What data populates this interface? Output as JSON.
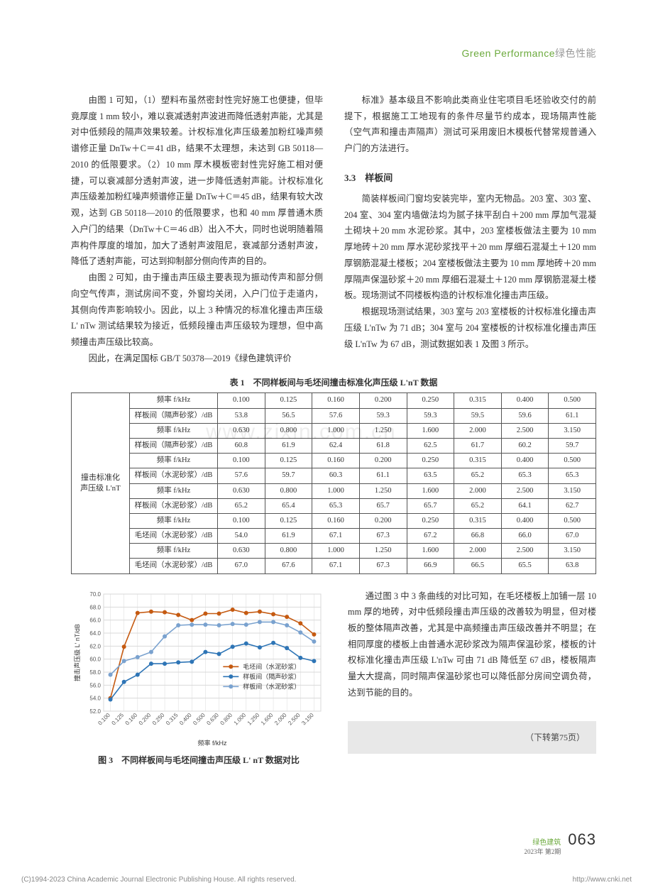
{
  "header": {
    "en": "Green Performance",
    "cn": "绿色性能"
  },
  "left_col": {
    "p1": "由图 1 可知，（1）塑料布虽然密封性完好施工也便捷，但毕竟厚度 1 mm 较小，难以衰减透射声波进而降低透射声能，尤其是对中低频段的隔声效果较差。计权标准化声压级差加粉红噪声频谱修正量 DnTw＋C＝41 dB，结果不太理想，未达到 GB 50118—2010 的低限要求。（2）10 mm 厚木模板密封性完好施工相对便捷，可以衰减部分透射声波，进一步降低透射声能。计权标准化声压级差加粉红噪声频谱修正量 DnTw＋C＝45 dB，结果有较大改观，达到 GB 50118—2010 的低限要求，也和 40 mm 厚普通木质入户门的结果（DnTw＋C＝46 dB）出入不大，同时也说明随着隔声构件厚度的增加，加大了透射声波阻尼，衰减部分透射声波，降低了透射声能，可达到抑制部分侧向传声的目的。",
    "p2": "由图 2 可知，由于撞击声压级主要表现为振动传声和部分侧向空气传声，测试房间不变，外窗均关闭，入户门位于走道内，其侧向传声影响较小。因此，以上 3 种情况的标准化撞击声压级 L' nTw 测试结果较为接近，低频段撞击声压级较为理想，但中高频撞击声压级比较高。",
    "p3": "因此，在满足国标 GB/T 50378—2019《绿色建筑评价"
  },
  "right_col": {
    "p1": "标准》基本级且不影响此类商业住宅项目毛坯验收交付的前提下，根据施工工地现有的条件尽量节约成本，现场隔声性能（空气声和撞击声隔声）测试可采用废旧木模板代替常规普通入户门的方法进行。",
    "h": "3.3　样板间",
    "p2": "简装样板间门窗均安装完毕，室内无物品。203 室、303 室、204 室、304 室内墙做法均为腻子抹平刮白＋200 mm 厚加气混凝土砌块＋20 mm 水泥砂浆。其中，203 室楼板做法主要为 10 mm 厚地砖＋20 mm 厚水泥砂浆找平＋20 mm 厚细石混凝土＋120 mm 厚钢筋混凝土楼板；204 室楼板做法主要为 10 mm 厚地砖＋20 mm 厚隔声保温砂浆＋20 mm 厚细石混凝土＋120 mm 厚钢筋混凝土楼板。现场测试不同楼板构造的计权标准化撞击声压级。",
    "p3": "根据现场测试结果，303 室与 203 室楼板的计权标准化撞击声压级 L'nTw 为 71 dB；304 室与 204 室楼板的计权标准化撞击声压级 L'nTw 为 67 dB，测试数据如表 1 及图 3 所示。"
  },
  "table": {
    "title": "表 1　不同样板间与毛坯间撞击标准化声压级 L'nT 数据",
    "rowhead": "撞击标准化\n声压级 L'nT",
    "rows": [
      {
        "label": "频率 f/kHz",
        "vals": [
          "0.100",
          "0.125",
          "0.160",
          "0.200",
          "0.250",
          "0.315",
          "0.400",
          "0.500"
        ]
      },
      {
        "label": "样板间（隔声砂浆）/dB",
        "vals": [
          "53.8",
          "56.5",
          "57.6",
          "59.3",
          "59.3",
          "59.5",
          "59.6",
          "61.1"
        ]
      },
      {
        "label": "频率 f/kHz",
        "vals": [
          "0.630",
          "0.800",
          "1.000",
          "1.250",
          "1.600",
          "2.000",
          "2.500",
          "3.150"
        ]
      },
      {
        "label": "样板间（隔声砂浆）/dB",
        "vals": [
          "60.8",
          "61.9",
          "62.4",
          "61.8",
          "62.5",
          "61.7",
          "60.2",
          "59.7"
        ]
      },
      {
        "label": "频率 f/kHz",
        "vals": [
          "0.100",
          "0.125",
          "0.160",
          "0.200",
          "0.250",
          "0.315",
          "0.400",
          "0.500"
        ]
      },
      {
        "label": "样板间（水泥砂浆）/dB",
        "vals": [
          "57.6",
          "59.7",
          "60.3",
          "61.1",
          "63.5",
          "65.2",
          "65.3",
          "65.3"
        ]
      },
      {
        "label": "频率 f/kHz",
        "vals": [
          "0.630",
          "0.800",
          "1.000",
          "1.250",
          "1.600",
          "2.000",
          "2.500",
          "3.150"
        ]
      },
      {
        "label": "样板间（水泥砂浆）/dB",
        "vals": [
          "65.2",
          "65.4",
          "65.3",
          "65.7",
          "65.7",
          "65.2",
          "64.1",
          "62.7"
        ]
      },
      {
        "label": "频率 f/kHz",
        "vals": [
          "0.100",
          "0.125",
          "0.160",
          "0.200",
          "0.250",
          "0.315",
          "0.400",
          "0.500"
        ]
      },
      {
        "label": "毛坯间（水泥砂浆）/dB",
        "vals": [
          "54.0",
          "61.9",
          "67.1",
          "67.3",
          "67.2",
          "66.8",
          "66.0",
          "67.0"
        ]
      },
      {
        "label": "频率 f/kHz",
        "vals": [
          "0.630",
          "0.800",
          "1.000",
          "1.250",
          "1.600",
          "2.000",
          "2.500",
          "3.150"
        ]
      },
      {
        "label": "毛坯间（水泥砂浆）/dB",
        "vals": [
          "67.0",
          "67.6",
          "67.1",
          "67.3",
          "66.9",
          "66.5",
          "65.5",
          "63.8"
        ]
      }
    ]
  },
  "chart": {
    "caption": "图 3　不同样板间与毛坯间撞击声压级 L' nT 数据对比",
    "ylabel": "撞击声压级 L' nT/dB",
    "xlabel": "频率 f/kHz",
    "ylim": [
      52,
      70
    ],
    "ytick_step": 2,
    "xcats": [
      "0.100",
      "0.125",
      "0.160",
      "0.200",
      "0.250",
      "0.315",
      "0.400",
      "0.500",
      "0.630",
      "0.800",
      "1.000",
      "1.250",
      "1.600",
      "2.000",
      "2.500",
      "3.150"
    ],
    "grid_color": "#d9d9d9",
    "background": "#ffffff",
    "plot_bg": "#ffffff",
    "series": [
      {
        "name": "毛坯间（水泥砂浆）",
        "color": "#c55a11",
        "marker": "circle",
        "y": [
          54.0,
          61.9,
          67.1,
          67.3,
          67.2,
          66.8,
          66.0,
          67.0,
          67.0,
          67.6,
          67.1,
          67.3,
          66.9,
          66.5,
          65.5,
          63.8
        ]
      },
      {
        "name": "样板间（隔声砂浆）",
        "color": "#2e75b6",
        "marker": "circle",
        "y": [
          53.8,
          56.5,
          57.6,
          59.3,
          59.3,
          59.5,
          59.6,
          61.1,
          60.8,
          61.9,
          62.4,
          61.8,
          62.5,
          61.7,
          60.2,
          59.7
        ]
      },
      {
        "name": "样板间（水泥砂浆）",
        "color": "#7aa2cf",
        "marker": "circle",
        "y": [
          57.6,
          59.7,
          60.3,
          61.1,
          63.5,
          65.2,
          65.3,
          65.3,
          65.2,
          65.4,
          65.3,
          65.7,
          65.7,
          65.2,
          64.1,
          62.7
        ]
      }
    ],
    "line_width": 1.6,
    "marker_size": 3,
    "font_size_axis": 8,
    "font_size_legend": 9
  },
  "lower_text": {
    "p1": "通过图 3 中 3 条曲线的对比可知，在毛坯楼板上加铺一层 10 mm 厚的地砖，对中低频段撞击声压级的改善较为明显，但对楼板的整体隔声改善，尤其是中高频撞击声压级改善并不明显；在相同厚度的楼板上由普通水泥砂浆改为隔声保温砂浆，楼板的计权标准化撞击声压级 L'nTw 可由 71 dB 降低至 67 dB，楼板隔声量大大提高，同时隔声保温砂浆也可以降低部分房间空调负荷，达到节能的目的。",
    "cont": "（下转第75页）"
  },
  "footer": {
    "journal": "绿色建筑",
    "issue": "2023年 第2期",
    "page": "063"
  },
  "copyright": {
    "left": "(C)1994-2023 China Academic Journal Electronic Publishing House. All rights reserved.",
    "right": "http://www.cnki.net"
  },
  "watermark": "www.zixin.com.cn"
}
